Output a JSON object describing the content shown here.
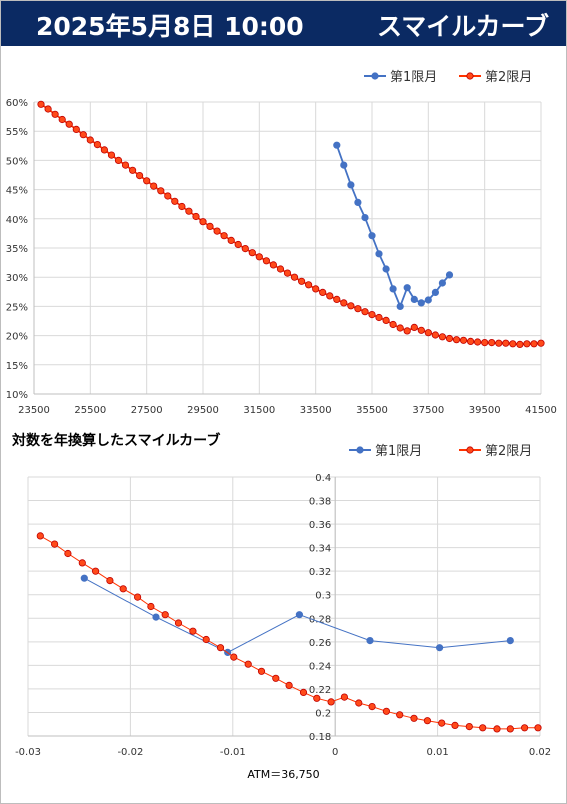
{
  "header": {
    "date": "2025年5月8日 10:00",
    "title": "スマイルカーブ"
  },
  "chart_data": [
    {
      "type": "line",
      "title": "",
      "xlabel": "",
      "ylabel": "",
      "xlim": [
        23500,
        41500
      ],
      "ylim": [
        0.1,
        0.6
      ],
      "xticks": [
        23500,
        25500,
        27500,
        29500,
        31500,
        33500,
        35500,
        37500,
        39500,
        41500
      ],
      "xtick_labels": [
        "23500",
        "25500",
        "27500",
        "29500",
        "31500",
        "33500",
        "35500",
        "37500",
        "39500",
        "41500"
      ],
      "yticks": [
        0.1,
        0.15,
        0.2,
        0.25,
        0.3,
        0.35,
        0.4,
        0.45,
        0.5,
        0.55,
        0.6
      ],
      "ytick_labels": [
        "10%",
        "15%",
        "20%",
        "25%",
        "30%",
        "35%",
        "40%",
        "45%",
        "50%",
        "55%",
        "60%"
      ],
      "grid": true,
      "legend": "top-right",
      "series": [
        {
          "name": "第1限月",
          "color": "#4472c4",
          "x": [
            34250,
            34500,
            34750,
            35000,
            35250,
            35500,
            35750,
            36000,
            36250,
            36500,
            36750,
            37000,
            37250,
            37500,
            37750,
            38000,
            38250
          ],
          "y": [
            0.526,
            0.492,
            0.458,
            0.428,
            0.402,
            0.371,
            0.34,
            0.314,
            0.28,
            0.25,
            0.282,
            0.262,
            0.256,
            0.261,
            0.274,
            0.29,
            0.304
          ]
        },
        {
          "name": "第2限月",
          "color": "#ff3300",
          "x": [
            23750,
            24000,
            24250,
            24500,
            24750,
            25000,
            25250,
            25500,
            25750,
            26000,
            26250,
            26500,
            26750,
            27000,
            27250,
            27500,
            27750,
            28000,
            28250,
            28500,
            28750,
            29000,
            29250,
            29500,
            29750,
            30000,
            30250,
            30500,
            30750,
            31000,
            31250,
            31500,
            31750,
            32000,
            32250,
            32500,
            32750,
            33000,
            33250,
            33500,
            33750,
            34000,
            34250,
            34500,
            34750,
            35000,
            35250,
            35500,
            35750,
            36000,
            36250,
            36500,
            36750,
            37000,
            37250,
            37500,
            37750,
            38000,
            38250,
            38500,
            38750,
            39000,
            39250,
            39500,
            39750,
            40000,
            40250,
            40500,
            40750,
            41000,
            41250,
            41500
          ],
          "y": [
            0.596,
            0.588,
            0.579,
            0.57,
            0.562,
            0.553,
            0.544,
            0.535,
            0.527,
            0.518,
            0.509,
            0.5,
            0.492,
            0.483,
            0.474,
            0.465,
            0.456,
            0.448,
            0.439,
            0.43,
            0.421,
            0.413,
            0.404,
            0.395,
            0.387,
            0.379,
            0.371,
            0.363,
            0.356,
            0.349,
            0.342,
            0.335,
            0.328,
            0.321,
            0.314,
            0.307,
            0.3,
            0.293,
            0.287,
            0.28,
            0.274,
            0.268,
            0.262,
            0.256,
            0.251,
            0.246,
            0.241,
            0.236,
            0.231,
            0.226,
            0.219,
            0.213,
            0.208,
            0.214,
            0.209,
            0.205,
            0.201,
            0.198,
            0.195,
            0.193,
            0.192,
            0.19,
            0.189,
            0.188,
            0.188,
            0.187,
            0.187,
            0.186,
            0.185,
            0.186,
            0.186,
            0.187
          ]
        }
      ]
    },
    {
      "type": "line",
      "title": "対数を年換算したスマイルカーブ",
      "xlabel": "ATM＝36,750",
      "ylabel": "",
      "xlim": [
        -0.03,
        0.02
      ],
      "ylim": [
        0.18,
        0.4
      ],
      "xticks": [
        -0.03,
        -0.02,
        -0.01,
        0,
        0.01,
        0.02
      ],
      "xtick_labels": [
        "-0.03",
        "-0.02",
        "-0.01",
        "0",
        "0.01",
        "0.02"
      ],
      "yticks": [
        0.18,
        0.2,
        0.22,
        0.24,
        0.26,
        0.28,
        0.3,
        0.32,
        0.34,
        0.36,
        0.38,
        0.4
      ],
      "ytick_labels": [
        "0.18",
        "0.2",
        "0.22",
        "0.24",
        "0.26",
        "0.28",
        "0.3",
        "0.32",
        "0.34",
        "0.36",
        "0.38",
        "0.4"
      ],
      "grid": true,
      "legend": "top-right",
      "series": [
        {
          "name": "第1限月",
          "color": "#4472c4",
          "x": [
            -0.0245,
            -0.0175,
            -0.0105,
            -0.0035,
            0.0034,
            0.0102,
            0.0171
          ],
          "y": [
            0.314,
            0.281,
            0.251,
            0.283,
            0.261,
            0.255,
            0.261
          ]
        },
        {
          "name": "第2限月",
          "color": "#ff3300",
          "x": [
            -0.0288,
            -0.0274,
            -0.0261,
            -0.0247,
            -0.0234,
            -0.022,
            -0.0207,
            -0.0193,
            -0.018,
            -0.0166,
            -0.0153,
            -0.0139,
            -0.0126,
            -0.0112,
            -0.0099,
            -0.0085,
            -0.0072,
            -0.0058,
            -0.0045,
            -0.0031,
            -0.0018,
            -0.0004,
            0.0009,
            0.0023,
            0.0036,
            0.005,
            0.0063,
            0.0077,
            0.009,
            0.0104,
            0.0117,
            0.0131,
            0.0144,
            0.0158,
            0.0171,
            0.0185,
            0.0198
          ],
          "y": [
            0.35,
            0.343,
            0.335,
            0.327,
            0.32,
            0.312,
            0.305,
            0.298,
            0.29,
            0.283,
            0.276,
            0.269,
            0.262,
            0.255,
            0.247,
            0.241,
            0.235,
            0.229,
            0.223,
            0.217,
            0.212,
            0.209,
            0.213,
            0.208,
            0.205,
            0.201,
            0.198,
            0.195,
            0.193,
            0.191,
            0.189,
            0.188,
            0.187,
            0.186,
            0.186,
            0.187,
            0.187
          ]
        }
      ]
    }
  ]
}
